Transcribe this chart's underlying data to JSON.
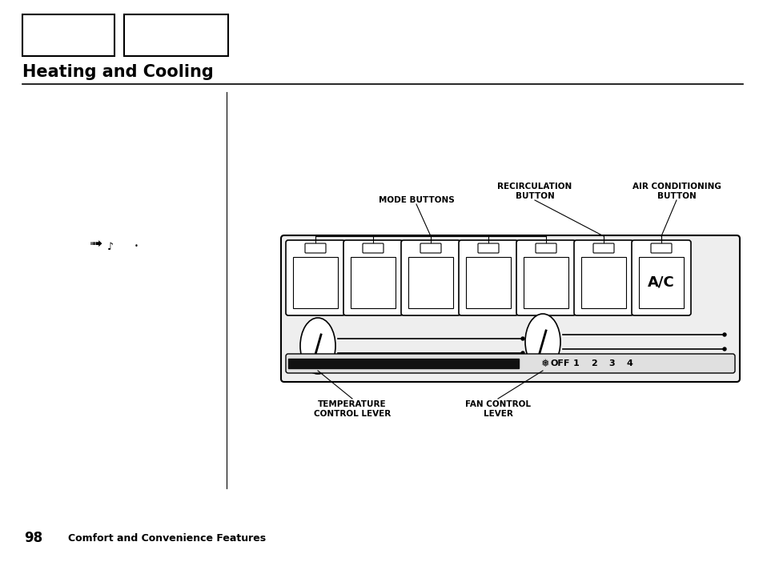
{
  "title": "Heating and Cooling",
  "page_num": "98",
  "footer_text": "Comfort and Convenience Features",
  "bg_color": "#ffffff",
  "text_color": "#000000",
  "title_fontsize": 15,
  "label_mode_buttons": "MODE BUTTONS",
  "label_recirc": "RECIRCULATION\nBUTTON",
  "label_ac": "AIR CONDITIONING\nBUTTON",
  "label_temp": "TEMPERATURE\nCONTROL LEVER",
  "label_fan": "FAN CONTROL\nLEVER"
}
